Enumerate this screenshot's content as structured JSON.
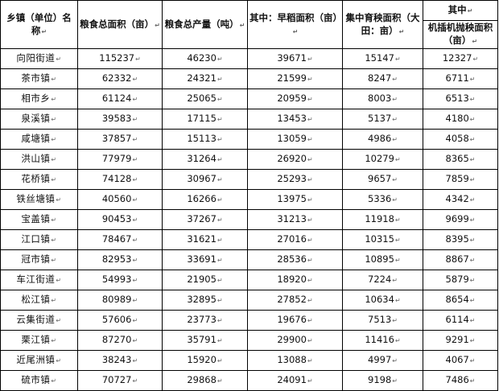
{
  "headers": {
    "township": "乡镇（单位）名称",
    "grain_area": "粮食总面积（亩）",
    "grain_output": "粮食总产量（吨）",
    "early_rice_area": "其中：早稻面积（亩）",
    "nursery_area": "集中育秧面积（大田：亩）",
    "sub_group": "其中",
    "machine_area": "机插机抛秧面积（亩）"
  },
  "cell_mark": "↵",
  "rows": [
    {
      "name": "向阳街道",
      "grain_area": "115237",
      "grain_output": "46230",
      "early_rice_area": "39671",
      "nursery_area": "15147",
      "machine_area": "12327"
    },
    {
      "name": "茶市镇",
      "grain_area": "62332",
      "grain_output": "24321",
      "early_rice_area": "21599",
      "nursery_area": "8247",
      "machine_area": "6711"
    },
    {
      "name": "相市乡",
      "grain_area": "61124",
      "grain_output": "25065",
      "early_rice_area": "20959",
      "nursery_area": "8003",
      "machine_area": "6513"
    },
    {
      "name": "泉溪镇",
      "grain_area": "39583",
      "grain_output": "17115",
      "early_rice_area": "13453",
      "nursery_area": "5137",
      "machine_area": "4180"
    },
    {
      "name": "咸塘镇",
      "grain_area": "37857",
      "grain_output": "15113",
      "early_rice_area": "13059",
      "nursery_area": "4986",
      "machine_area": "4058"
    },
    {
      "name": "洪山镇",
      "grain_area": "77979",
      "grain_output": "31264",
      "early_rice_area": "26920",
      "nursery_area": "10279",
      "machine_area": "8365"
    },
    {
      "name": "花桥镇",
      "grain_area": "74128",
      "grain_output": "30967",
      "early_rice_area": "25293",
      "nursery_area": "9657",
      "machine_area": "7859"
    },
    {
      "name": "铁丝塘镇",
      "grain_area": "40560",
      "grain_output": "16266",
      "early_rice_area": "13975",
      "nursery_area": "5336",
      "machine_area": "4342"
    },
    {
      "name": "宝盖镇",
      "grain_area": "90453",
      "grain_output": "37267",
      "early_rice_area": "31213",
      "nursery_area": "11918",
      "machine_area": "9699"
    },
    {
      "name": "江口镇",
      "grain_area": "78467",
      "grain_output": "31621",
      "early_rice_area": "27016",
      "nursery_area": "10315",
      "machine_area": "8395"
    },
    {
      "name": "冠市镇",
      "grain_area": "82953",
      "grain_output": "33691",
      "early_rice_area": "28536",
      "nursery_area": "10895",
      "machine_area": "8867"
    },
    {
      "name": "车江街道",
      "grain_area": "54993",
      "grain_output": "21905",
      "early_rice_area": "18920",
      "nursery_area": "7224",
      "machine_area": "5879"
    },
    {
      "name": "松江镇",
      "grain_area": "80989",
      "grain_output": "32895",
      "early_rice_area": "27852",
      "nursery_area": "10634",
      "machine_area": "8654"
    },
    {
      "name": "云集街道",
      "grain_area": "57606",
      "grain_output": "23773",
      "early_rice_area": "19676",
      "nursery_area": "7513",
      "machine_area": "6114"
    },
    {
      "name": "栗江镇",
      "grain_area": "87270",
      "grain_output": "35791",
      "early_rice_area": "29900",
      "nursery_area": "11416",
      "machine_area": "9291"
    },
    {
      "name": "近尾洲镇",
      "grain_area": "38243",
      "grain_output": "15920",
      "early_rice_area": "13088",
      "nursery_area": "4997",
      "machine_area": "4067"
    },
    {
      "name": "硫市镇",
      "grain_area": "70727",
      "grain_output": "29868",
      "early_rice_area": "24091",
      "nursery_area": "9198",
      "machine_area": "7486"
    }
  ]
}
